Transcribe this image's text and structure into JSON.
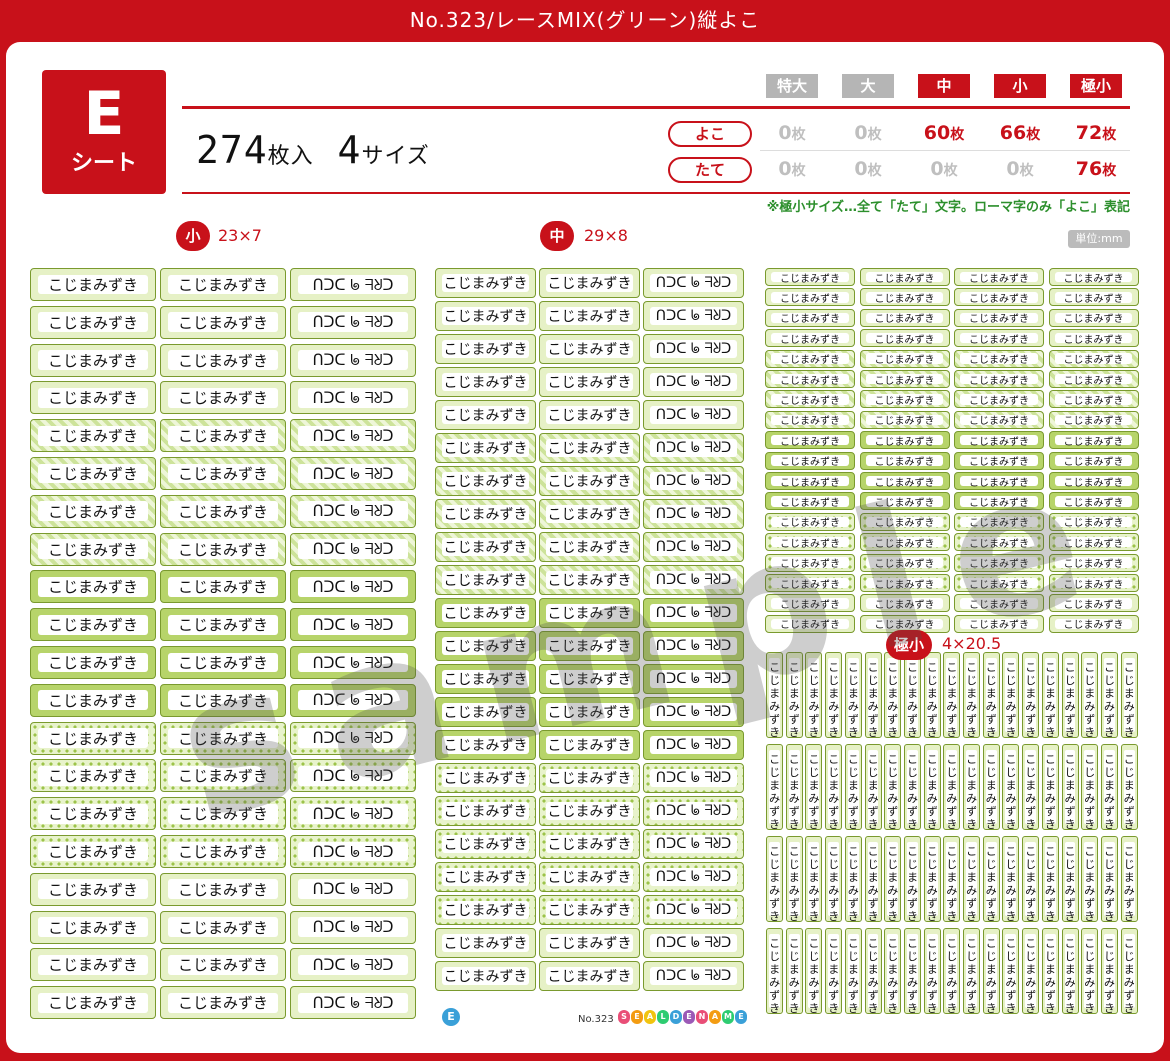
{
  "title": "No.323/レースMIX(グリーン)縦よこ",
  "sheet": {
    "letter": "E",
    "label": "シート"
  },
  "count": {
    "number": "274",
    "unit": "枚入",
    "sizes": "4",
    "sizes_unit": "サイズ"
  },
  "size_headers": [
    "特大",
    "大",
    "中",
    "小",
    "極小"
  ],
  "size_header_colors": [
    "#b5b5b5",
    "#b5b5b5",
    "#c8111a",
    "#c8111a",
    "#c8111a"
  ],
  "rows": [
    {
      "label": "よこ",
      "values": [
        "0",
        "0",
        "60",
        "66",
        "72"
      ],
      "unit": "枚"
    },
    {
      "label": "たて",
      "values": [
        "0",
        "0",
        "0",
        "0",
        "76"
      ],
      "unit": "枚"
    }
  ],
  "note": "※極小サイズ…全て「たて」文字。ローマ字のみ「よこ」表記",
  "sections": {
    "small": {
      "badge": "小",
      "dim": "23×7"
    },
    "medium": {
      "badge": "中",
      "dim": "29×8"
    },
    "tiny": {
      "badge": "極小",
      "dim": "4×20.5"
    }
  },
  "unit_label": "単位:mm",
  "name_kana": "こじまみずき",
  "name_roman": "ᑎᑐᑕ ᖚ ᖷᖈᑐ",
  "watermark": "sample",
  "footer": {
    "badge": "E",
    "number": "No.323",
    "brand": "SEALDENAME"
  },
  "colors": {
    "brand_red": "#c8111a",
    "green": "#9cc34a",
    "note_green": "#2c8f2c"
  }
}
